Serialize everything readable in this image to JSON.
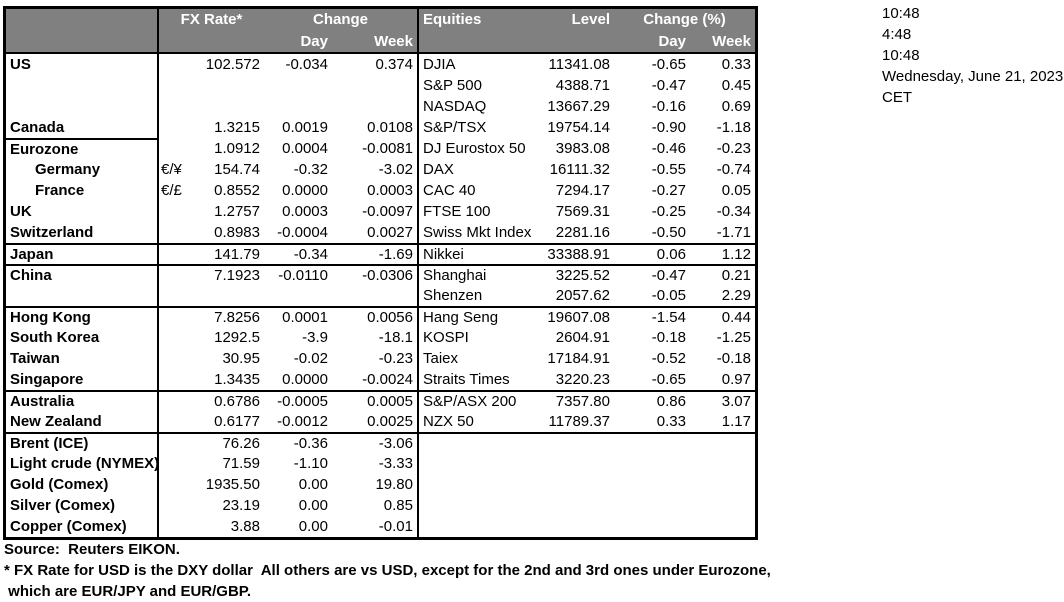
{
  "header": {
    "fx_rate": "FX Rate*",
    "change": "Change",
    "fx_day": "Day",
    "fx_week": "Week",
    "equities": "Equities",
    "level": "Level",
    "change_pct": "Change (%)",
    "eq_day": "Day",
    "eq_week": "Week"
  },
  "rows": [
    {
      "country": "US",
      "pair": "",
      "fx_rate": "102.572",
      "fx_day": "-0.034",
      "fx_week": "0.374",
      "equity": "DJIA",
      "level": "11341.08",
      "eq_day": "-0.65",
      "eq_week": "0.33"
    },
    {
      "country": "",
      "pair": "",
      "fx_rate": "",
      "fx_day": "",
      "fx_week": "",
      "equity": "S&P 500",
      "level": "4388.71",
      "eq_day": "-0.47",
      "eq_week": "0.45"
    },
    {
      "country": "",
      "pair": "",
      "fx_rate": "",
      "fx_day": "",
      "fx_week": "",
      "equity": "NASDAQ",
      "level": "13667.29",
      "eq_day": "-0.16",
      "eq_week": "0.69"
    },
    {
      "country": "Canada",
      "pair": "",
      "fx_rate": "1.3215",
      "fx_day": "0.0019",
      "fx_week": "0.0108",
      "equity": "S&P/TSX",
      "level": "19754.14",
      "eq_day": "-0.90",
      "eq_week": "-1.18"
    },
    {
      "country": "Eurozone",
      "pair": "",
      "fx_rate": "1.0912",
      "fx_day": "0.0004",
      "fx_week": "-0.0081",
      "equity": "DJ Eurostox 50",
      "level": "3983.08",
      "eq_day": "-0.46",
      "eq_week": "-0.23",
      "separator": "left"
    },
    {
      "country": "Germany",
      "indent": true,
      "pair": "€/¥",
      "fx_rate": "154.74",
      "fx_day": "-0.32",
      "fx_week": "-3.02",
      "equity": "DAX",
      "level": "16111.32",
      "eq_day": "-0.55",
      "eq_week": "-0.74"
    },
    {
      "country": "France",
      "indent": true,
      "pair": "€/£",
      "fx_rate": "0.8552",
      "fx_day": "0.0000",
      "fx_week": "0.0003",
      "equity": "CAC 40",
      "level": "7294.17",
      "eq_day": "-0.27",
      "eq_week": "0.05"
    },
    {
      "country": "UK",
      "pair": "",
      "fx_rate": "1.2757",
      "fx_day": "0.0003",
      "fx_week": "-0.0097",
      "equity": "FTSE 100",
      "level": "7569.31",
      "eq_day": "-0.25",
      "eq_week": "-0.34"
    },
    {
      "country": "Switzerland",
      "pair": "",
      "fx_rate": "0.8983",
      "fx_day": "-0.0004",
      "fx_week": "0.0027",
      "equity": "Swiss Mkt Index",
      "level": "2281.16",
      "eq_day": "-0.50",
      "eq_week": "-1.71"
    },
    {
      "country": "Japan",
      "pair": "",
      "fx_rate": "141.79",
      "fx_day": "-0.34",
      "fx_week": "-1.69",
      "equity": "Nikkei",
      "level": "33388.91",
      "eq_day": "0.06",
      "eq_week": "1.12",
      "separator": "full"
    },
    {
      "country": "China",
      "pair": "",
      "fx_rate": "7.1923",
      "fx_day": "-0.0110",
      "fx_week": "-0.0306",
      "equity": "Shanghai",
      "level": "3225.52",
      "eq_day": "-0.47",
      "eq_week": "0.21",
      "separator": "full"
    },
    {
      "country": "",
      "pair": "",
      "fx_rate": "",
      "fx_day": "",
      "fx_week": "",
      "equity": "Shenzen",
      "level": "2057.62",
      "eq_day": "-0.05",
      "eq_week": "2.29"
    },
    {
      "country": "Hong Kong",
      "pair": "",
      "fx_rate": "7.8256",
      "fx_day": "0.0001",
      "fx_week": "0.0056",
      "equity": "Hang Seng",
      "level": "19607.08",
      "eq_day": "-1.54",
      "eq_week": "0.44",
      "separator": "full"
    },
    {
      "country": "South Korea",
      "pair": "",
      "fx_rate": "1292.5",
      "fx_day": "-3.9",
      "fx_week": "-18.1",
      "equity": "KOSPI",
      "level": "2604.91",
      "eq_day": "-0.18",
      "eq_week": "-1.25"
    },
    {
      "country": "Taiwan",
      "pair": "",
      "fx_rate": "30.95",
      "fx_day": "-0.02",
      "fx_week": "-0.23",
      "equity": "Taiex",
      "level": "17184.91",
      "eq_day": "-0.52",
      "eq_week": "-0.18"
    },
    {
      "country": "Singapore",
      "pair": "",
      "fx_rate": "1.3435",
      "fx_day": "0.0000",
      "fx_week": "-0.0024",
      "equity": "Straits Times",
      "level": "3220.23",
      "eq_day": "-0.65",
      "eq_week": "0.97"
    },
    {
      "country": "Australia",
      "pair": "",
      "fx_rate": "0.6786",
      "fx_day": "-0.0005",
      "fx_week": "0.0005",
      "equity": "S&P/ASX  200",
      "level": "7357.80",
      "eq_day": "0.86",
      "eq_week": "3.07",
      "separator": "full"
    },
    {
      "country": "New Zealand",
      "pair": "",
      "fx_rate": "0.6177",
      "fx_day": "-0.0012",
      "fx_week": "0.0025",
      "equity": "NZX 50",
      "level": "11789.37",
      "eq_day": "0.33",
      "eq_week": "1.17"
    },
    {
      "country": "Brent (ICE)",
      "pair": "",
      "fx_rate": "76.26",
      "fx_day": "-0.36",
      "fx_week": "-3.06",
      "equity": "",
      "level": "",
      "eq_day": "",
      "eq_week": "",
      "separator": "full"
    },
    {
      "country": "Light crude (NYMEX)",
      "pair": "",
      "fx_rate": "71.59",
      "fx_day": "-1.10",
      "fx_week": "-3.33",
      "equity": "",
      "level": "",
      "eq_day": "",
      "eq_week": ""
    },
    {
      "country": "Gold (Comex)",
      "pair": "",
      "fx_rate": "1935.50",
      "fx_day": "0.00",
      "fx_week": "19.80",
      "equity": "",
      "level": "",
      "eq_day": "",
      "eq_week": ""
    },
    {
      "country": "Silver (Comex)",
      "pair": "",
      "fx_rate": "23.19",
      "fx_day": "0.00",
      "fx_week": "0.85",
      "equity": "",
      "level": "",
      "eq_day": "",
      "eq_week": ""
    },
    {
      "country": "Copper (Comex)",
      "pair": "",
      "fx_rate": "3.88",
      "fx_day": "0.00",
      "fx_week": "-0.01",
      "equity": "",
      "level": "",
      "eq_day": "",
      "eq_week": ""
    }
  ],
  "timestamps": [
    "10:48",
    "4:48",
    "10:48",
    "Wednesday, June 21, 2023",
    "CET"
  ],
  "footnotes": {
    "source": "Source:  Reuters EIKON.",
    "note1": "* FX Rate for USD is the DXY dollar  All others are vs USD, except for the 2nd and 3rd ones under Eurozone,",
    "note2": " which are EUR/JPY and EUR/GBP."
  },
  "colors": {
    "header_bg": "#808080",
    "header_text": "#ffffff",
    "border": "#000000",
    "text": "#000000",
    "background": "#ffffff"
  }
}
